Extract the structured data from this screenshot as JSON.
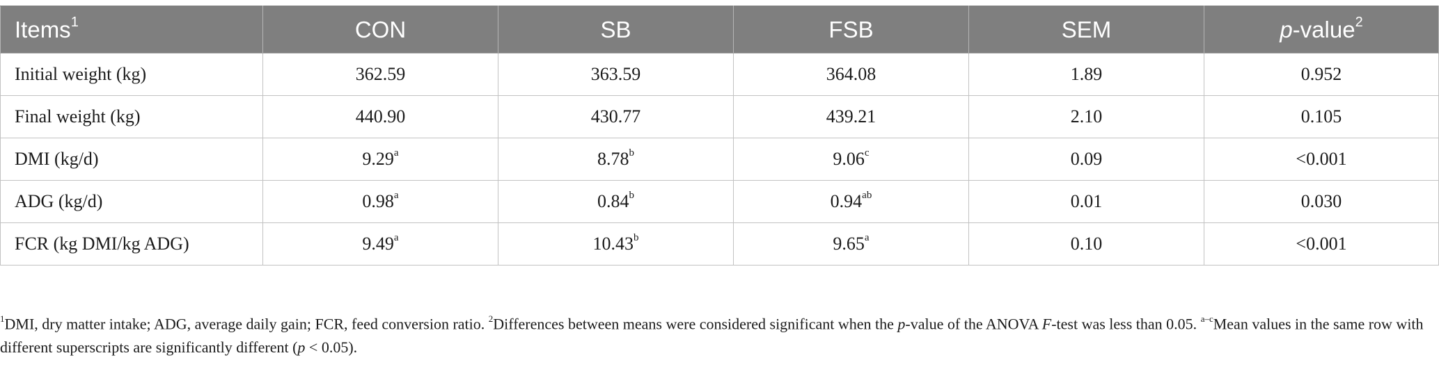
{
  "table": {
    "header": {
      "items_label": "Items",
      "items_sup": "1",
      "con": "CON",
      "sb": "SB",
      "fsb": "FSB",
      "sem": "SEM",
      "pvalue_p": "p",
      "pvalue_rest": "-value",
      "pvalue_sup": "2"
    },
    "rows": [
      {
        "item": "Initial weight (kg)",
        "con": "362.59",
        "con_sup": "",
        "sb": "363.59",
        "sb_sup": "",
        "fsb": "364.08",
        "fsb_sup": "",
        "sem": "1.89",
        "p": "0.952"
      },
      {
        "item": "Final weight (kg)",
        "con": "440.90",
        "con_sup": "",
        "sb": "430.77",
        "sb_sup": "",
        "fsb": "439.21",
        "fsb_sup": "",
        "sem": "2.10",
        "p": "0.105"
      },
      {
        "item": "DMI (kg/d)",
        "con": "9.29",
        "con_sup": "a",
        "sb": "8.78",
        "sb_sup": "b",
        "fsb": "9.06",
        "fsb_sup": "c",
        "sem": "0.09",
        "p": "<0.001"
      },
      {
        "item": "ADG (kg/d)",
        "con": "0.98",
        "con_sup": "a",
        "sb": "0.84",
        "sb_sup": "b",
        "fsb": "0.94",
        "fsb_sup": "ab",
        "sem": "0.01",
        "p": "0.030"
      },
      {
        "item": "FCR (kg DMI/kg ADG)",
        "con": "9.49",
        "con_sup": "a",
        "sb": "10.43",
        "sb_sup": "b",
        "fsb": "9.65",
        "fsb_sup": "a",
        "sem": "0.10",
        "p": "<0.001"
      }
    ]
  },
  "footnote": {
    "sup1": "1",
    "text1": "DMI, dry matter intake; ADG, average daily gain; FCR, feed conversion ratio. ",
    "sup2": "2",
    "text2a": "Differences between means were considered significant when the ",
    "p1": "p",
    "text2b": "-value of the ANOVA ",
    "f": "F",
    "text2c": "-test was less than 0.05. ",
    "sup3": "a–c",
    "text3a": "Mean values in the same row with different superscripts are significantly different (",
    "p2": "p",
    "text3b": " < 0.05)."
  }
}
